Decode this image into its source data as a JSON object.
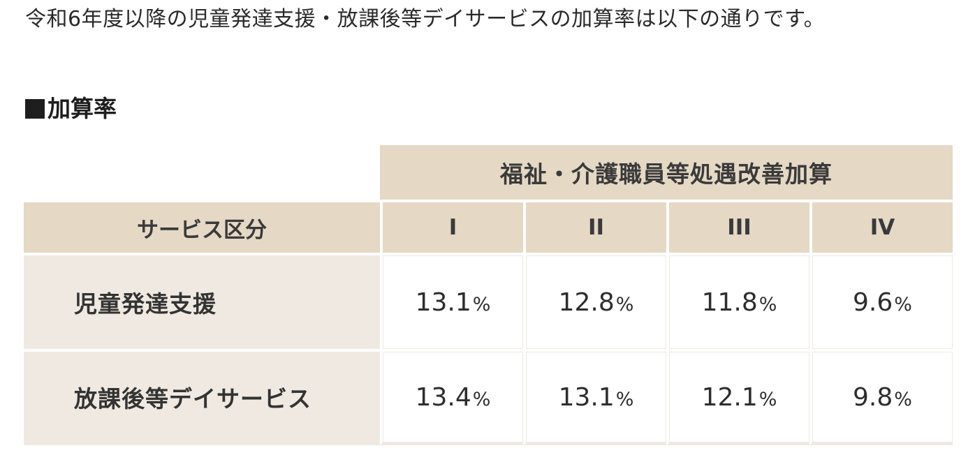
{
  "intro_text": "令和6年度以降の児童発達支援・放課後等デイサービスの加算率は以下の通りです。",
  "section_heading": "加算率",
  "table": {
    "group_header": "福祉・介護職員等処遇改善加算",
    "service_header": "サービス区分",
    "tiers": [
      "I",
      "II",
      "III",
      "IV"
    ],
    "percent_sign": "%",
    "rows": [
      {
        "service": "児童発達支援",
        "rates": [
          "13.1",
          "12.8",
          "11.8",
          "9.6"
        ]
      },
      {
        "service": "放課後等デイサービス",
        "rates": [
          "13.4",
          "13.1",
          "12.1",
          "9.8"
        ]
      }
    ]
  },
  "colors": {
    "header_bg": "#e5d8c5",
    "service_cell_bg": "#efe9e2",
    "value_cell_bg": "#ffffff"
  }
}
